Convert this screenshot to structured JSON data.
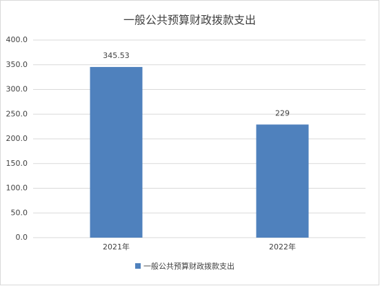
{
  "chart_data": {
    "type": "bar",
    "title": "一般公共预算财政拨款支出",
    "categories": [
      "2021年",
      "2022年"
    ],
    "series": [
      {
        "name": "一般公共预算财政拨款支出",
        "color": "#4f81bd",
        "values": [
          345.53,
          229
        ]
      }
    ],
    "ylim": [
      0,
      400
    ],
    "yticks": [
      {
        "value": 0,
        "label": "0.0"
      },
      {
        "value": 50,
        "label": "50.0"
      },
      {
        "value": 100,
        "label": "100.0"
      },
      {
        "value": 150,
        "label": "150.0"
      },
      {
        "value": 200,
        "label": "200.0"
      },
      {
        "value": 250,
        "label": "250.0"
      },
      {
        "value": 300,
        "label": "300.0"
      },
      {
        "value": 350,
        "label": "350.0"
      },
      {
        "value": 400,
        "label": "400.0"
      }
    ],
    "grid": true,
    "legend": "bottom"
  }
}
